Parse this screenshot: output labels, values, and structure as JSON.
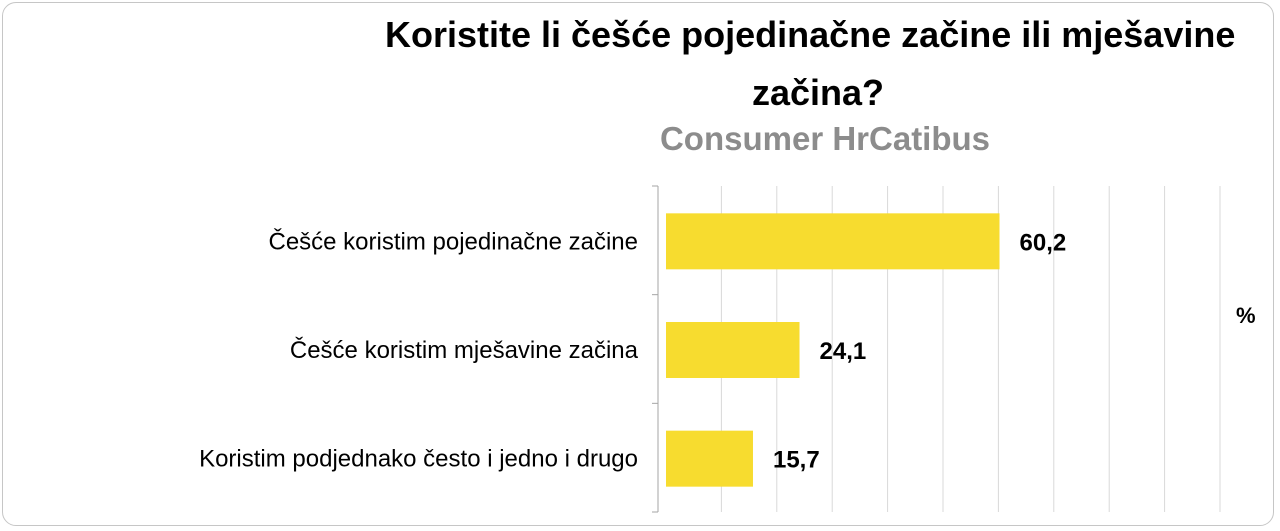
{
  "chart_data": {
    "type": "bar",
    "orientation": "horizontal",
    "title_lines": [
      "Koristite li češće pojedinačne začine ili mješavine",
      "začina?"
    ],
    "subtitle": "Consumer HrCatibus",
    "unit_label": "%",
    "categories": [
      "Češće koristim pojedinačne začine",
      "Češće koristim mješavine začina",
      "Koristim podjednako često i jedno i drugo"
    ],
    "values": [
      60.2,
      24.1,
      15.7
    ],
    "value_labels": [
      "60,2",
      "24,1",
      "15,7"
    ],
    "xlim": [
      0,
      100
    ],
    "grid": true,
    "colors": {
      "bar": "#f7dc2f",
      "grid": "#d9d9d9",
      "axis": "#a6a6a6"
    }
  }
}
